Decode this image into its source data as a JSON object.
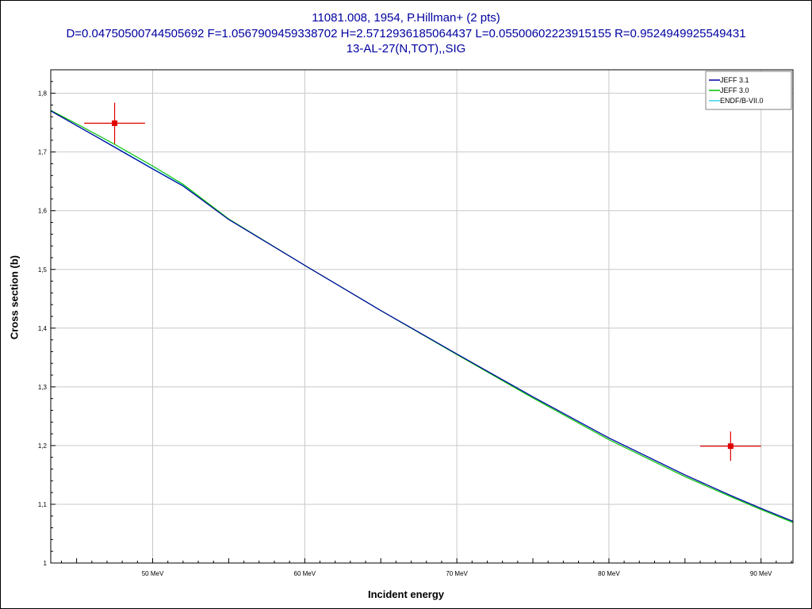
{
  "header": {
    "title_line1": "11081.008, 1954, P.Hillman+ (2 pts)",
    "title_line2": "D=0.04750500744505692 F=1.0567909459338702 H=2.5712936185064437 L=0.05500602223915155 R=0.9524949925549431",
    "title_line3": "13-AL-27(N,TOT),,SIG"
  },
  "chart_data": {
    "type": "line",
    "title": "11081.008, 1954, P.Hillman+ (2 pts)",
    "xlabel": "Incident energy",
    "ylabel": "Cross section (b)",
    "xlim": [
      43.3,
      92.1
    ],
    "ylim": [
      1.0,
      1.84
    ],
    "x_ticks": [
      {
        "value": 50,
        "label": "50 MeV"
      },
      {
        "value": 60,
        "label": "60 MeV"
      },
      {
        "value": 70,
        "label": "70 MeV"
      },
      {
        "value": 80,
        "label": "80 MeV"
      },
      {
        "value": 90,
        "label": "90 MeV"
      }
    ],
    "y_ticks": [
      {
        "value": 1.0,
        "label": "1"
      },
      {
        "value": 1.1,
        "label": "1,1"
      },
      {
        "value": 1.2,
        "label": "1,2"
      },
      {
        "value": 1.3,
        "label": "1,3"
      },
      {
        "value": 1.4,
        "label": "1,4"
      },
      {
        "value": 1.5,
        "label": "1,5"
      },
      {
        "value": 1.6,
        "label": "1,6"
      },
      {
        "value": 1.7,
        "label": "1,7"
      },
      {
        "value": 1.8,
        "label": "1,8"
      }
    ],
    "grid": true,
    "legend_position": "top-right",
    "series": [
      {
        "name": "JEFF 3.1",
        "color": "#0000a0",
        "x": [
          43.3,
          45,
          47.5,
          50,
          52,
          55,
          60,
          65,
          70,
          75,
          80,
          85,
          88,
          90,
          92.1
        ],
        "y": [
          1.77,
          1.745,
          1.708,
          1.671,
          1.642,
          1.585,
          1.507,
          1.43,
          1.356,
          1.283,
          1.213,
          1.15,
          1.115,
          1.093,
          1.071
        ]
      },
      {
        "name": "JEFF 3.0",
        "color": "#00c000",
        "x": [
          43.3,
          45,
          47.5,
          50,
          52,
          55,
          60,
          65,
          70,
          75,
          80,
          85,
          88,
          90,
          92.1
        ],
        "y": [
          1.771,
          1.748,
          1.713,
          1.676,
          1.645,
          1.586,
          1.507,
          1.43,
          1.355,
          1.281,
          1.21,
          1.147,
          1.113,
          1.091,
          1.069
        ]
      },
      {
        "name": "ENDF/B-VII.0",
        "color": "#40d0f0",
        "x": [
          43.3,
          45,
          47.5,
          50,
          52,
          55,
          60,
          65,
          70,
          75,
          80,
          85,
          88,
          90,
          92.1
        ],
        "y": [
          1.77,
          1.745,
          1.709,
          1.672,
          1.643,
          1.585,
          1.507,
          1.43,
          1.356,
          1.283,
          1.213,
          1.15,
          1.115,
          1.093,
          1.071
        ]
      }
    ],
    "points": {
      "color": "#e00000",
      "data": [
        {
          "x": 47.5,
          "y": 1.749,
          "xerr": 2.0,
          "yerr": 0.035
        },
        {
          "x": 88.0,
          "y": 1.199,
          "xerr": 2.0,
          "yerr": 0.025
        }
      ]
    }
  }
}
